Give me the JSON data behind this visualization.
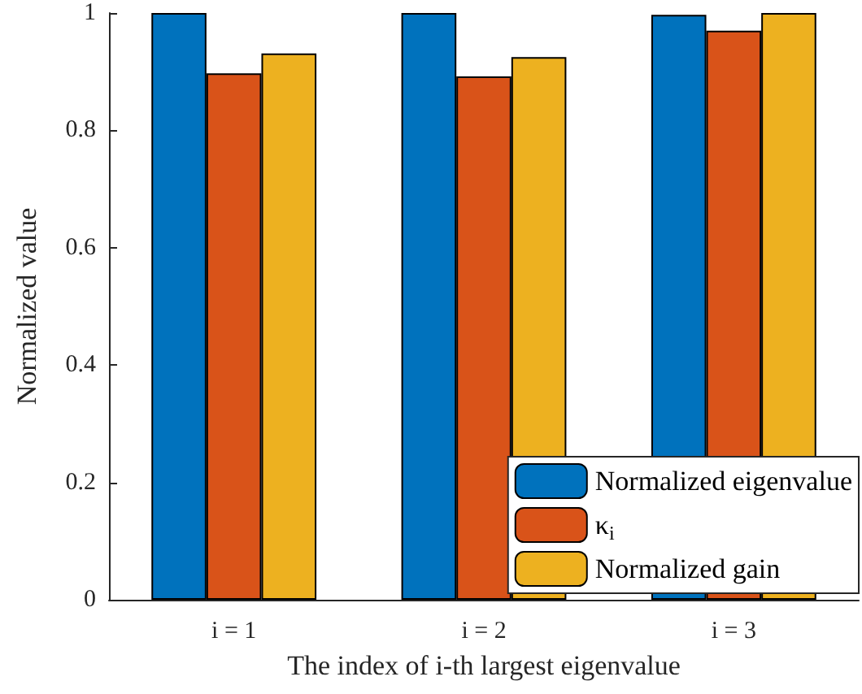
{
  "chart_data": {
    "type": "bar",
    "xlabel": "The index of i-th largest eigenvalue",
    "ylabel": "Normalized value",
    "categories": [
      "i = 1",
      "i = 2",
      "i = 3"
    ],
    "series": [
      {
        "name": "Normalized eigenvalue",
        "color": "#0072bd",
        "values": [
          1,
          1,
          0.997
        ]
      },
      {
        "name": "κ$_{i}$",
        "color": "#d95319",
        "values": [
          0.897,
          0.892,
          0.97
        ]
      },
      {
        "name": "Normalized gain",
        "color": "#edb120",
        "values": [
          0.931,
          0.925,
          1
        ]
      }
    ],
    "ylim": [
      0,
      1
    ],
    "yticks": [
      0,
      0.2,
      0.4,
      0.6,
      0.8,
      1
    ],
    "grid": false,
    "legend": "bottom right"
  }
}
